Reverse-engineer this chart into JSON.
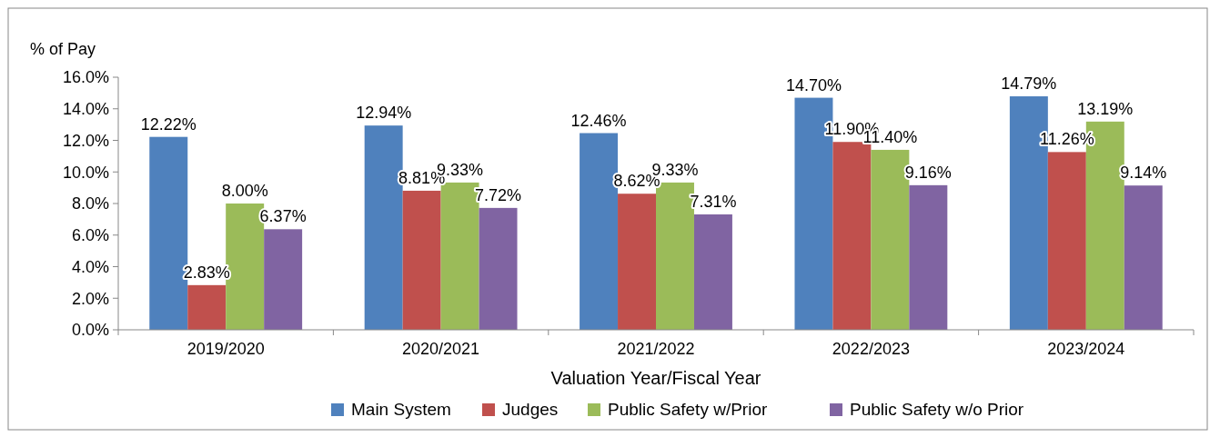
{
  "chart_data": {
    "type": "bar",
    "xlabel": "Valuation Year/Fiscal Year",
    "ylabel": "% of Pay",
    "categories": [
      "2019/2020",
      "2020/2021",
      "2021/2022",
      "2022/2023",
      "2023/2024"
    ],
    "series": [
      {
        "name": "Main System",
        "color": "#4f81bd",
        "values": [
          12.22,
          12.94,
          12.46,
          14.7,
          14.79
        ],
        "value_labels": [
          "12.22%",
          "12.94%",
          "12.46%",
          "14.70%",
          "14.79%"
        ]
      },
      {
        "name": "Judges",
        "color": "#c0504d",
        "values": [
          2.83,
          8.81,
          8.62,
          11.9,
          11.26
        ],
        "value_labels": [
          "2.83%",
          "8.81%",
          "8.62%",
          "11.90%",
          "11.26%"
        ]
      },
      {
        "name": "Public Safety w/Prior",
        "color": "#9bbb59",
        "values": [
          8.0,
          9.33,
          9.33,
          11.4,
          13.19
        ],
        "value_labels": [
          "8.00%",
          "9.33%",
          "9.33%",
          "11.40%",
          "13.19%"
        ]
      },
      {
        "name": "Public Safety w/o Prior",
        "color": "#8064a2",
        "values": [
          6.37,
          7.72,
          7.31,
          9.16,
          9.14
        ],
        "value_labels": [
          "6.37%",
          "7.72%",
          "7.31%",
          "9.16%",
          "9.14%"
        ]
      }
    ],
    "ylim": [
      0,
      16
    ],
    "yticks": [
      {
        "value": 0,
        "label": "0.0%"
      },
      {
        "value": 2,
        "label": "2.0%"
      },
      {
        "value": 4,
        "label": "4.0%"
      },
      {
        "value": 6,
        "label": "6.0%"
      },
      {
        "value": 8,
        "label": "8.0%"
      },
      {
        "value": 10,
        "label": "10.0%"
      },
      {
        "value": 12,
        "label": "12.0%"
      },
      {
        "value": 14,
        "label": "14.0%"
      },
      {
        "value": 16,
        "label": "16.0%"
      }
    ],
    "grid": false,
    "legend": "bottom"
  }
}
